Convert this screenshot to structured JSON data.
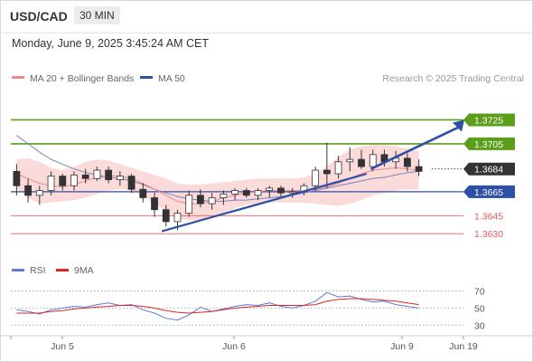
{
  "header": {
    "pair": "USD/CAD",
    "interval": "30 MIN",
    "datetime": "Monday, June 9, 2025 3:45:24 AM CET"
  },
  "legend": {
    "ma20_label": "MA 20 + Bollinger Bands",
    "ma50_label": "MA 50",
    "copyright": "Research © 2025 Trading Central",
    "rsi_label": "RSI",
    "rsi_ma_label": "9MA"
  },
  "colors": {
    "green": "#5a9e1a",
    "blue": "#2d50a6",
    "red": "#e85a5a",
    "ma20": "#ef8a8a",
    "band_fill": "#fbdada",
    "ma50": "#7b83bd",
    "candle_up": "#ffffff",
    "candle_down": "#333333",
    "current": "#333333",
    "rsi": "#5b7bd6",
    "rsi_ma": "#e02525"
  },
  "chart_data": [
    {
      "type": "candlestick",
      "title": "USD/CAD 30 MIN",
      "x_tick_labels": [
        "Jun 5",
        "Jun 6",
        "Jun 9",
        "Jun 19"
      ],
      "ylim": [
        1.3615,
        1.3745
      ],
      "price_levels": [
        {
          "value": 1.3725,
          "label": "1.3725",
          "style": "green-solid",
          "role": "target"
        },
        {
          "value": 1.3705,
          "label": "1.3705",
          "style": "green-solid",
          "role": "resistance"
        },
        {
          "value": 1.3684,
          "label": "1.3684",
          "style": "current",
          "role": "last"
        },
        {
          "value": 1.3665,
          "label": "1.3665",
          "style": "blue-solid",
          "role": "pivot"
        },
        {
          "value": 1.3645,
          "label": "1.3645",
          "style": "red-thin",
          "role": "support"
        },
        {
          "value": 1.363,
          "label": "1.3630",
          "style": "red-thin",
          "role": "support"
        }
      ],
      "trendline": {
        "from": [
          0.365,
          1.3632
        ],
        "to": [
          0.86,
          1.368
        ]
      },
      "forecast_arrow": {
        "from": [
          0.87,
          1.3684
        ],
        "to": [
          1.0,
          1.3725
        ]
      },
      "series": [
        {
          "name": "MA 20",
          "values": [
            1.368,
            1.3676,
            1.3672,
            1.367,
            1.3669,
            1.3671,
            1.3674,
            1.3677,
            1.3678,
            1.3678,
            1.3676,
            1.3672,
            1.3667,
            1.3662,
            1.3657,
            1.3655,
            1.3655,
            1.3657,
            1.366,
            1.3662,
            1.3664,
            1.3665,
            1.3666,
            1.3666,
            1.3666,
            1.3666,
            1.3667,
            1.3669,
            1.3672,
            1.3676,
            1.368,
            1.3683,
            1.3684,
            1.3685,
            1.3684,
            1.3683
          ]
        },
        {
          "name": "MA 50",
          "values": [
            1.3712,
            1.3705,
            1.3698,
            1.3692,
            1.3688,
            1.3684,
            1.3681,
            1.3679,
            1.3677,
            1.3676,
            1.3674,
            1.3671,
            1.3667,
            1.3664,
            1.3661,
            1.3659,
            1.3658,
            1.3657,
            1.3657,
            1.3658,
            1.3658,
            1.3659,
            1.366,
            1.3661,
            1.3662,
            1.3664,
            1.3666,
            1.3668,
            1.367,
            1.3672,
            1.3674,
            1.3676,
            1.3677,
            1.3679,
            1.3681,
            1.3682
          ]
        },
        {
          "name": "Bollinger Upper",
          "values": [
            1.3692,
            1.3693,
            1.369,
            1.3685,
            1.3683,
            1.3686,
            1.369,
            1.3692,
            1.3691,
            1.3688,
            1.3685,
            1.3682,
            1.3679,
            1.3676,
            1.3672,
            1.3671,
            1.3671,
            1.3672,
            1.3673,
            1.3674,
            1.3675,
            1.3676,
            1.3676,
            1.3676,
            1.3676,
            1.3677,
            1.368,
            1.3686,
            1.3694,
            1.37,
            1.3703,
            1.3704,
            1.3704,
            1.3703,
            1.3701,
            1.3699
          ]
        },
        {
          "name": "Bollinger Lower",
          "values": [
            1.3668,
            1.366,
            1.3655,
            1.3656,
            1.3657,
            1.3658,
            1.366,
            1.3663,
            1.3666,
            1.3667,
            1.3666,
            1.3662,
            1.3655,
            1.3648,
            1.3642,
            1.3641,
            1.3641,
            1.3643,
            1.3647,
            1.3651,
            1.3654,
            1.3655,
            1.3656,
            1.3656,
            1.3656,
            1.3656,
            1.3655,
            1.3654,
            1.3653,
            1.3655,
            1.3658,
            1.3662,
            1.3664,
            1.3666,
            1.3667,
            1.3667
          ]
        },
        {
          "name": "Candles",
          "ohlc": [
            [
              1.3682,
              1.3688,
              1.3662,
              1.367
            ],
            [
              1.367,
              1.3676,
              1.3656,
              1.3662
            ],
            [
              1.3662,
              1.367,
              1.3654,
              1.3666
            ],
            [
              1.3666,
              1.3682,
              1.3662,
              1.3678
            ],
            [
              1.3678,
              1.368,
              1.3666,
              1.367
            ],
            [
              1.367,
              1.3682,
              1.3666,
              1.3679
            ],
            [
              1.3679,
              1.3684,
              1.3672,
              1.3676
            ],
            [
              1.3676,
              1.3686,
              1.3674,
              1.3683
            ],
            [
              1.3683,
              1.3686,
              1.3672,
              1.3675
            ],
            [
              1.3675,
              1.3682,
              1.367,
              1.3678
            ],
            [
              1.3678,
              1.368,
              1.3664,
              1.3667
            ],
            [
              1.3667,
              1.3672,
              1.3656,
              1.366
            ],
            [
              1.366,
              1.3664,
              1.3644,
              1.365
            ],
            [
              1.365,
              1.3654,
              1.3636,
              1.364
            ],
            [
              1.364,
              1.365,
              1.3633,
              1.3647
            ],
            [
              1.3647,
              1.3666,
              1.3644,
              1.3662
            ],
            [
              1.3662,
              1.3667,
              1.3652,
              1.3655
            ],
            [
              1.3655,
              1.3664,
              1.365,
              1.366
            ],
            [
              1.366,
              1.3666,
              1.3654,
              1.3663
            ],
            [
              1.3663,
              1.3668,
              1.3658,
              1.3666
            ],
            [
              1.3666,
              1.3668,
              1.366,
              1.3662
            ],
            [
              1.3662,
              1.3668,
              1.3658,
              1.3666
            ],
            [
              1.3666,
              1.367,
              1.366,
              1.3668
            ],
            [
              1.3668,
              1.367,
              1.3661,
              1.3664
            ],
            [
              1.3664,
              1.3668,
              1.366,
              1.3665
            ],
            [
              1.3665,
              1.3672,
              1.3662,
              1.367
            ],
            [
              1.367,
              1.3686,
              1.3666,
              1.3683
            ],
            [
              1.3683,
              1.3706,
              1.3668,
              1.368
            ],
            [
              1.368,
              1.3695,
              1.3676,
              1.369
            ],
            [
              1.369,
              1.3702,
              1.3682,
              1.3692
            ],
            [
              1.3692,
              1.37,
              1.3684,
              1.3686
            ],
            [
              1.3686,
              1.37,
              1.3682,
              1.3696
            ],
            [
              1.3696,
              1.37,
              1.3686,
              1.369
            ],
            [
              1.369,
              1.3699,
              1.3684,
              1.3693
            ],
            [
              1.3693,
              1.3697,
              1.3682,
              1.3686
            ],
            [
              1.3686,
              1.3692,
              1.3678,
              1.3682
            ]
          ]
        }
      ]
    },
    {
      "type": "line",
      "title": "RSI",
      "x_tick_labels": [
        "Jun 5",
        "Jun 6",
        "Jun 9",
        "Jun 19"
      ],
      "ylim": [
        25,
        80
      ],
      "y_ticks": [
        70,
        50,
        30
      ],
      "series": [
        {
          "name": "RSI",
          "values": [
            48,
            46,
            43,
            48,
            50,
            52,
            51,
            54,
            56,
            53,
            54,
            48,
            44,
            38,
            36,
            42,
            51,
            46,
            49,
            52,
            54,
            53,
            56,
            52,
            50,
            53,
            58,
            68,
            63,
            64,
            60,
            57,
            58,
            54,
            52,
            50
          ]
        },
        {
          "name": "9MA",
          "values": [
            44,
            44,
            44,
            46,
            47,
            49,
            50,
            51,
            52,
            53,
            53,
            52,
            50,
            47,
            45,
            44,
            45,
            46,
            48,
            50,
            51,
            52,
            53,
            53,
            53,
            53,
            54,
            58,
            60,
            61,
            61,
            60,
            59,
            58,
            56,
            54
          ]
        }
      ]
    }
  ]
}
